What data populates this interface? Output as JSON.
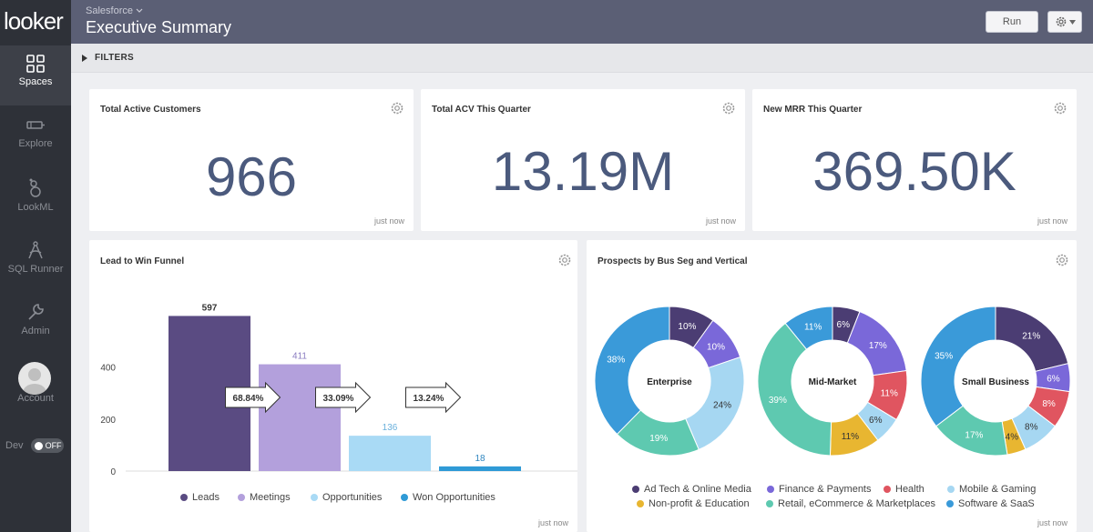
{
  "app": {
    "logo": "looker"
  },
  "nav": [
    {
      "label": "Spaces",
      "icon": "grid-icon"
    },
    {
      "label": "Explore",
      "icon": "explore-icon"
    },
    {
      "label": "LookML",
      "icon": "lookml-icon"
    },
    {
      "label": "SQL Runner",
      "icon": "sql-runner-icon"
    },
    {
      "label": "Admin",
      "icon": "wrench-icon"
    },
    {
      "label": "Account",
      "icon": "avatar-icon"
    }
  ],
  "dev": {
    "label": "Dev",
    "toggle": "OFF"
  },
  "header": {
    "breadcrumb": "Salesforce",
    "title": "Executive Summary",
    "run_label": "Run"
  },
  "filters": {
    "label": "FILTERS"
  },
  "tiles": {
    "customers": {
      "title": "Total Active Customers",
      "value": "966",
      "stamp": "just now"
    },
    "acv": {
      "title": "Total ACV This Quarter",
      "value": "13.19M",
      "stamp": "just now"
    },
    "mrr": {
      "title": "New MRR This Quarter",
      "value": "369.50K",
      "stamp": "just now"
    },
    "funnel": {
      "title": "Lead to Win Funnel",
      "stamp": "just now"
    },
    "prospects": {
      "title": "Prospects by Bus Seg and Vertical",
      "stamp": "just now"
    }
  },
  "chart_data": [
    {
      "type": "bar",
      "title": "Lead to Win Funnel",
      "categories": [
        "Leads",
        "Meetings",
        "Opportunities",
        "Won Opportunities"
      ],
      "values": [
        597,
        411,
        136,
        18
      ],
      "colors": [
        "#5a4b82",
        "#b3a0dc",
        "#a9daf5",
        "#2f9ad6"
      ],
      "label_colors": [
        "#333333",
        "#8a7cc0",
        "#6ab0dc",
        "#2f86c0"
      ],
      "conversion_rates": [
        "68.84%",
        "33.09%",
        "13.24%"
      ],
      "yticks": [
        0,
        200,
        400
      ],
      "ylim": [
        0,
        700
      ]
    },
    {
      "type": "pie",
      "title": "Prospects by Bus Seg and Vertical",
      "legend": [
        {
          "name": "Ad Tech & Online Media",
          "color": "#4b3d73"
        },
        {
          "name": "Finance & Payments",
          "color": "#7a68d9"
        },
        {
          "name": "Health",
          "color": "#e05560"
        },
        {
          "name": "Mobile & Gaming",
          "color": "#a6d7f2"
        },
        {
          "name": "Non-profit & Education",
          "color": "#e8b631"
        },
        {
          "name": "Retail, eCommerce & Marketplaces",
          "color": "#5ec9b0"
        },
        {
          "name": "Software & SaaS",
          "color": "#3a9ad9"
        }
      ],
      "series": [
        {
          "name": "Enterprise",
          "slices": [
            {
              "vertical": "Ad Tech & Online Media",
              "value": 10,
              "label": "10%"
            },
            {
              "vertical": "Finance & Payments",
              "value": 10,
              "label": "10%"
            },
            {
              "vertical": "Mobile & Gaming",
              "value": 24,
              "label": "24%"
            },
            {
              "vertical": "Retail, eCommerce & Marketplaces",
              "value": 19,
              "label": "19%"
            },
            {
              "vertical": "Software & SaaS",
              "value": 38,
              "label": "38%"
            }
          ]
        },
        {
          "name": "Mid-Market",
          "slices": [
            {
              "vertical": "Ad Tech & Online Media",
              "value": 6,
              "label": "6%"
            },
            {
              "vertical": "Finance & Payments",
              "value": 17,
              "label": "17%"
            },
            {
              "vertical": "Health",
              "value": 11,
              "label": "11%"
            },
            {
              "vertical": "Mobile & Gaming",
              "value": 6,
              "label": "6%"
            },
            {
              "vertical": "Non-profit & Education",
              "value": 11,
              "label": "11%"
            },
            {
              "vertical": "Retail, eCommerce & Marketplaces",
              "value": 39,
              "label": "39%"
            },
            {
              "vertical": "Software & SaaS",
              "value": 11,
              "label": "11%"
            }
          ]
        },
        {
          "name": "Small Business",
          "slices": [
            {
              "vertical": "Ad Tech & Online Media",
              "value": 21,
              "label": "21%"
            },
            {
              "vertical": "Finance & Payments",
              "value": 6,
              "label": "6%"
            },
            {
              "vertical": "Health",
              "value": 8,
              "label": "8%"
            },
            {
              "vertical": "Mobile & Gaming",
              "value": 8,
              "label": "8%"
            },
            {
              "vertical": "Non-profit & Education",
              "value": 4,
              "label": "4%"
            },
            {
              "vertical": "Retail, eCommerce & Marketplaces",
              "value": 17,
              "label": "17%"
            },
            {
              "vertical": "Software & SaaS",
              "value": 35,
              "label": "35%"
            }
          ]
        }
      ]
    }
  ]
}
